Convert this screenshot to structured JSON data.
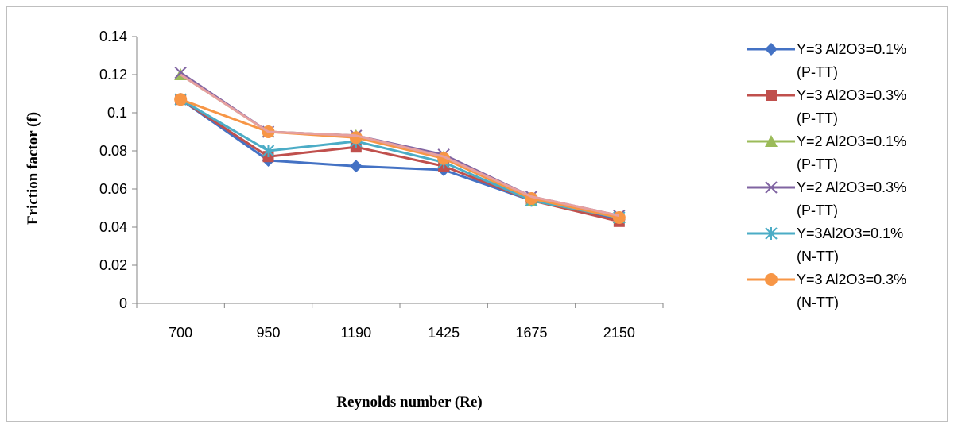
{
  "chart_data": {
    "type": "line",
    "title": "",
    "xlabel": "Reynolds number (Re)",
    "ylabel": "Friction factor (f)",
    "categories": [
      "700",
      "950",
      "1190",
      "1425",
      "1675",
      "2150"
    ],
    "ylim": [
      0,
      0.14
    ],
    "yticks": [
      "0",
      "0.02",
      "0.04",
      "0.06",
      "0.08",
      "0.1",
      "0.12",
      "0.14"
    ],
    "grid": false,
    "legend_position": "right",
    "series": [
      {
        "name_line1": "Y=3 Al2O3=0.1%",
        "name_line2": "(P-TT)",
        "color": "#4472c4",
        "marker": "diamond",
        "values": [
          0.107,
          0.075,
          0.072,
          0.07,
          0.054,
          0.044
        ]
      },
      {
        "name_line1": "Y=3 Al2O3=0.3%",
        "name_line2": "(P-TT)",
        "color": "#c0504d",
        "marker": "square",
        "values": [
          0.107,
          0.077,
          0.082,
          0.072,
          0.054,
          0.043
        ]
      },
      {
        "name_line1": "Y=2 Al2O3=0.1%",
        "name_line2": "(P-TT)",
        "color": "#9bbb59",
        "marker": "triangle",
        "values": [
          0.12,
          0.09,
          0.088,
          0.077,
          0.054,
          0.045
        ]
      },
      {
        "name_line1": "Y=2 Al2O3=0.3%",
        "name_line2": "(P-TT)",
        "color": "#8064a2",
        "marker": "x",
        "values": [
          0.121,
          0.09,
          0.088,
          0.078,
          0.056,
          0.046
        ]
      },
      {
        "name_line1": "Y=3Al2O3=0.1%",
        "name_line2": "(N-TT)",
        "color": "#4bacc6",
        "marker": "star",
        "values": [
          0.107,
          0.08,
          0.085,
          0.074,
          0.054,
          0.045
        ]
      },
      {
        "name_line1": "Y=3 Al2O3=0.3%",
        "name_line2": "(N-TT)",
        "color": "#f79646",
        "marker": "circle",
        "values": [
          0.107,
          0.09,
          0.087,
          0.076,
          0.055,
          0.045
        ]
      },
      {
        "name_line1": "",
        "name_line2": "",
        "color": "#e6a0a0",
        "marker": "none",
        "values": [
          0.12,
          0.09,
          0.088,
          0.077,
          0.056,
          0.046
        ]
      }
    ]
  }
}
